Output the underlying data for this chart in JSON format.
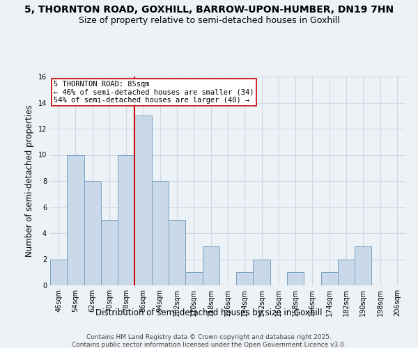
{
  "title_line1": "5, THORNTON ROAD, GOXHILL, BARROW-UPON-HUMBER, DN19 7HN",
  "title_line2": "Size of property relative to semi-detached houses in Goxhill",
  "xlabel": "Distribution of semi-detached houses by size in Goxhill",
  "ylabel": "Number of semi-detached properties",
  "bin_labels": [
    "46sqm",
    "54sqm",
    "62sqm",
    "70sqm",
    "78sqm",
    "86sqm",
    "94sqm",
    "102sqm",
    "110sqm",
    "118sqm",
    "126sqm",
    "134sqm",
    "142sqm",
    "150sqm",
    "158sqm",
    "166sqm",
    "174sqm",
    "182sqm",
    "190sqm",
    "198sqm",
    "206sqm"
  ],
  "bar_values": [
    2,
    10,
    8,
    5,
    10,
    13,
    8,
    5,
    1,
    3,
    0,
    1,
    2,
    0,
    1,
    0,
    1,
    2,
    3,
    0,
    0
  ],
  "bar_color": "#c9d9ea",
  "bar_edge_color": "#7aa0bf",
  "grid_color": "#cdd8e5",
  "background_color": "#edf2f7",
  "annotation_text": "5 THORNTON ROAD: 85sqm\n← 46% of semi-detached houses are smaller (34)\n54% of semi-detached houses are larger (40) →",
  "vline_index": 5,
  "vline_color": "#cc0000",
  "annotation_box_facecolor": "#ffffff",
  "annotation_box_edgecolor": "#cc0000",
  "ylim": [
    0,
    16
  ],
  "yticks": [
    0,
    2,
    4,
    6,
    8,
    10,
    12,
    14,
    16
  ],
  "title_fontsize": 10,
  "subtitle_fontsize": 9,
  "axis_label_fontsize": 8.5,
  "tick_fontsize": 7,
  "annotation_fontsize": 7.5,
  "footer_fontsize": 6.5,
  "footer_line1": "Contains HM Land Registry data © Crown copyright and database right 2025.",
  "footer_line2": "Contains public sector information licensed under the Open Government Licence v3.0."
}
